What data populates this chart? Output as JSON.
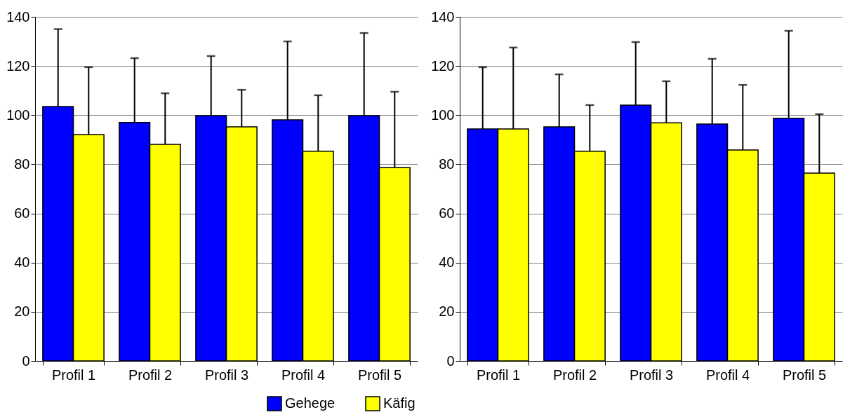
{
  "chart_data": [
    {
      "type": "bar",
      "categories": [
        "Profil 1",
        "Profil 2",
        "Profil 3",
        "Profil 4",
        "Profil 5"
      ],
      "ylim": [
        0,
        140
      ],
      "yticks": [
        0,
        20,
        40,
        60,
        80,
        100,
        120,
        140
      ],
      "grid": "y",
      "legend": "bottom",
      "series": [
        {
          "name": "Gehege",
          "color": "#0000ff",
          "values": [
            103.5,
            97,
            99.8,
            98.1,
            99.8
          ],
          "errors": [
            [
              103.5,
              135
            ],
            [
              97,
              123.2
            ],
            [
              99.8,
              124
            ],
            [
              98.1,
              130
            ],
            [
              99.8,
              133.4
            ]
          ]
        },
        {
          "name": "Käfig",
          "color": "#ffff00",
          "values": [
            92.1,
            88.1,
            95.2,
            85.3,
            78.7
          ],
          "errors": [
            [
              92.1,
              119.5
            ],
            [
              88.1,
              108.9
            ],
            [
              95.2,
              110.3
            ],
            [
              85.3,
              108.1
            ],
            [
              78.7,
              109.5
            ]
          ]
        }
      ]
    },
    {
      "type": "bar",
      "categories": [
        "Profil 1",
        "Profil 2",
        "Profil 3",
        "Profil 4",
        "Profil 5"
      ],
      "ylim": [
        0,
        140
      ],
      "yticks": [
        0,
        20,
        40,
        60,
        80,
        100,
        120,
        140
      ],
      "grid": "y",
      "series": [
        {
          "color": "#0000ff",
          "values": [
            94.4,
            95.2,
            104.1,
            96.4,
            98.7
          ],
          "errors": [
            [
              94.4,
              119.5
            ],
            [
              95.2,
              116.6
            ],
            [
              104.1,
              129.7
            ],
            [
              96.4,
              122.9
            ],
            [
              98.7,
              134.3
            ]
          ]
        },
        {
          "color": "#ffff00",
          "values": [
            94.4,
            85.3,
            96.9,
            85.8,
            76.4
          ],
          "errors": [
            [
              94.4,
              127.5
            ],
            [
              85.3,
              104.1
            ],
            [
              96.9,
              113.8
            ],
            [
              85.8,
              112.3
            ],
            [
              76.4,
              100.4
            ]
          ]
        }
      ]
    }
  ]
}
